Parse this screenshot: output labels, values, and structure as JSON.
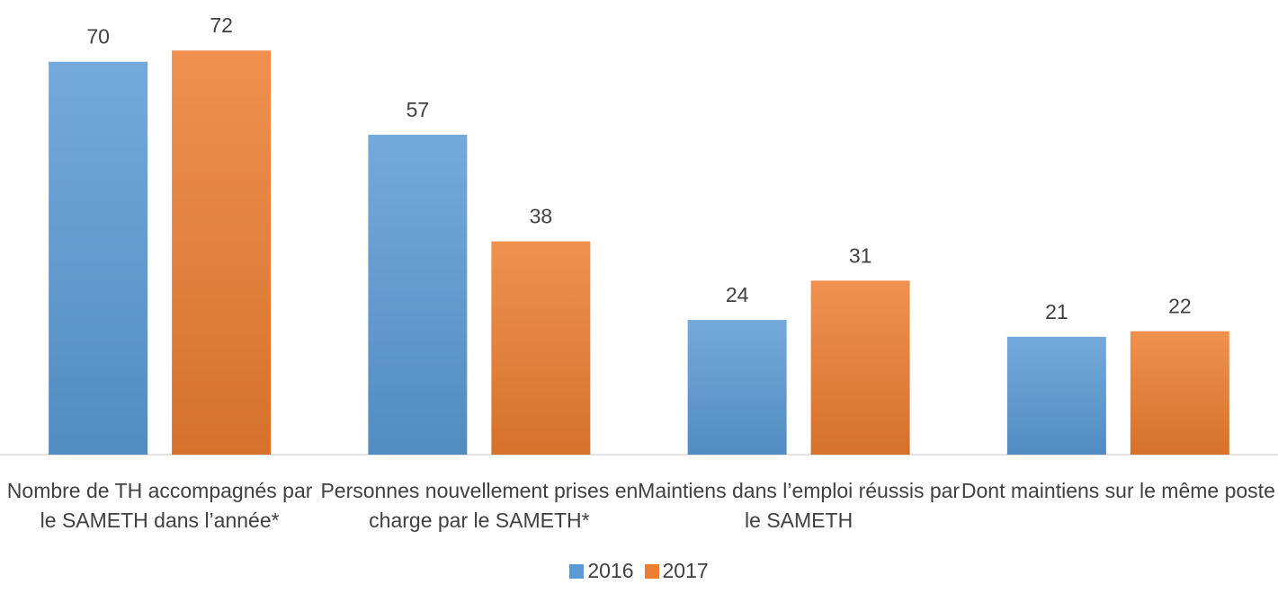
{
  "chart_data": {
    "type": "bar",
    "categories": [
      "Nombre de TH accompagnés par le SAMETH dans l’année*",
      "Personnes nouvellement prises en charge par le SAMETH*",
      "Maintiens dans l’emploi réussis par le SAMETH",
      "Dont maintiens sur le même poste"
    ],
    "series": [
      {
        "name": "2016",
        "color": "#5b9bd5",
        "values": [
          70,
          57,
          24,
          21
        ]
      },
      {
        "name": "2017",
        "color": "#ed7d31",
        "values": [
          72,
          38,
          31,
          22
        ]
      }
    ],
    "ylim": [
      0,
      81
    ],
    "legend": "bottom"
  }
}
